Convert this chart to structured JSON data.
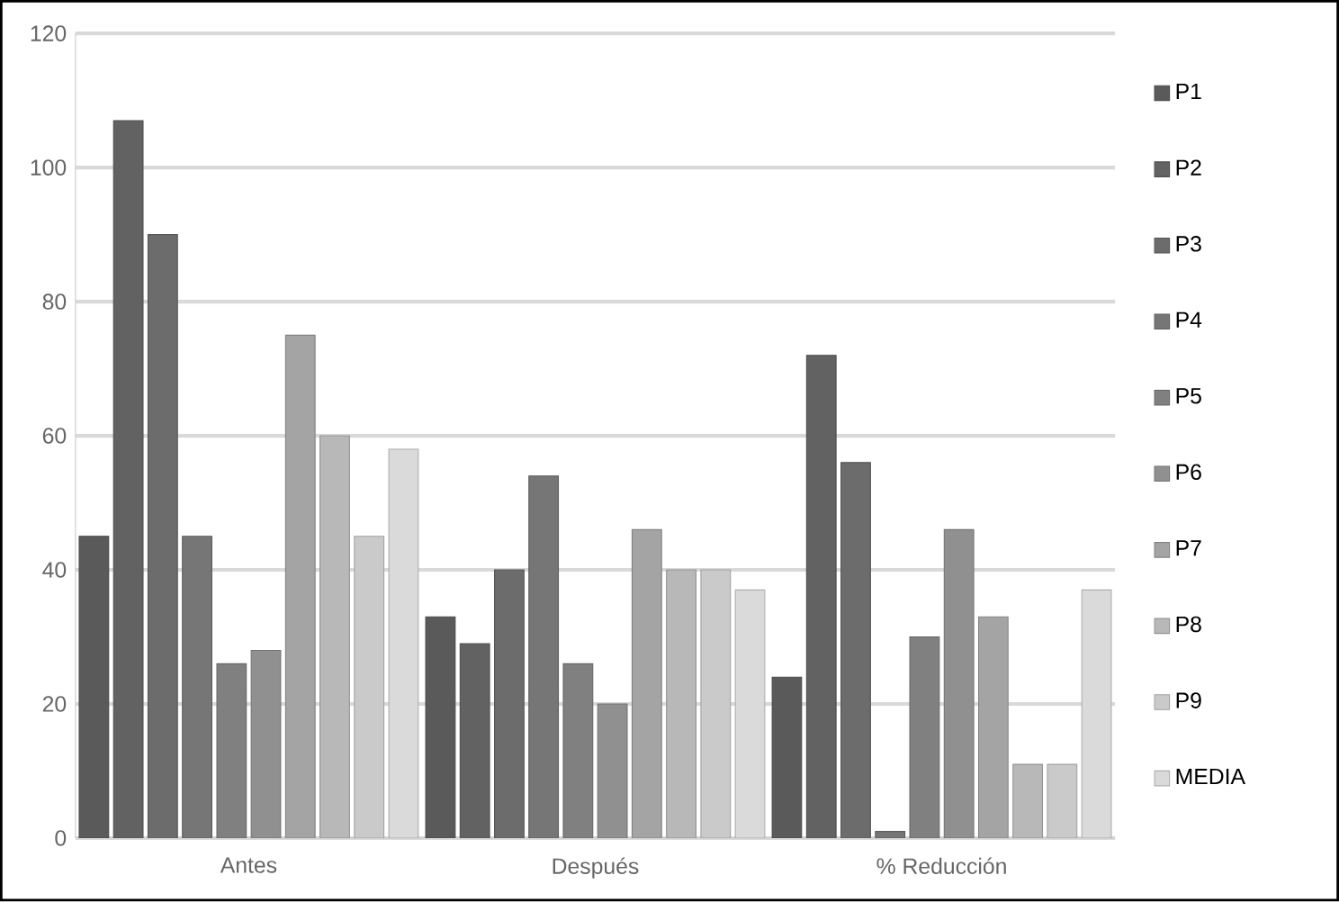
{
  "chart_data": {
    "type": "bar",
    "categories": [
      "Antes",
      "Después",
      "% Reducción"
    ],
    "series": [
      {
        "name": "P1",
        "color": "#5a5a5a",
        "values": [
          45,
          33,
          24
        ]
      },
      {
        "name": "P2",
        "color": "#626262",
        "values": [
          107,
          29,
          72
        ]
      },
      {
        "name": "P3",
        "color": "#6c6c6c",
        "values": [
          90,
          40,
          56
        ]
      },
      {
        "name": "P4",
        "color": "#767676",
        "values": [
          45,
          54,
          1
        ]
      },
      {
        "name": "P5",
        "color": "#808080",
        "values": [
          26,
          26,
          30
        ]
      },
      {
        "name": "P6",
        "color": "#909090",
        "values": [
          28,
          20,
          46
        ]
      },
      {
        "name": "P7",
        "color": "#a4a4a4",
        "values": [
          75,
          46,
          33
        ]
      },
      {
        "name": "P8",
        "color": "#b8b8b8",
        "values": [
          60,
          40,
          11
        ]
      },
      {
        "name": "P9",
        "color": "#cacaca",
        "values": [
          45,
          40,
          11
        ]
      },
      {
        "name": "MEDIA",
        "color": "#dadada",
        "values": [
          58,
          37,
          37
        ]
      }
    ],
    "ylim": [
      0,
      120
    ],
    "yticks": [
      0,
      20,
      40,
      60,
      80,
      100,
      120
    ],
    "grid": "y",
    "legend": "right"
  }
}
